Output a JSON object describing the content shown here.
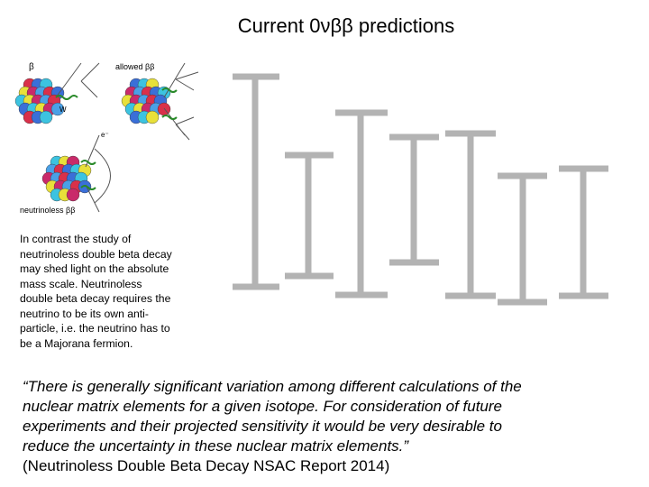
{
  "slide": {
    "title": "Current 0νββ predictions",
    "diagram": {
      "label_beta": "β",
      "label_allowed": "allowed ββ",
      "label_neutrinoless": "neutrinoless ββ",
      "label_w": "W",
      "label_e": "e⁻"
    },
    "paragraph": [
      "In contrast the study of",
      "neutrinoless double beta decay",
      "may shed light on the absolute",
      "mass scale. Neutrinoless",
      "double beta decay requires the",
      "neutrino to be its own anti-",
      "particle, i.e. the neutrino has to",
      "be a Majorana fermion."
    ],
    "quote": [
      "“There is generally significant variation among different calculations of the",
      "nuclear matrix elements for a given isotope. For consideration of future",
      "experiments and their projected sensitivity it would be very desirable to",
      "reduce the uncertainty in these nuclear matrix elements.”"
    ],
    "citation": "(Neutrinoless Double Beta Decay NSAC Report 2014)"
  }
}
